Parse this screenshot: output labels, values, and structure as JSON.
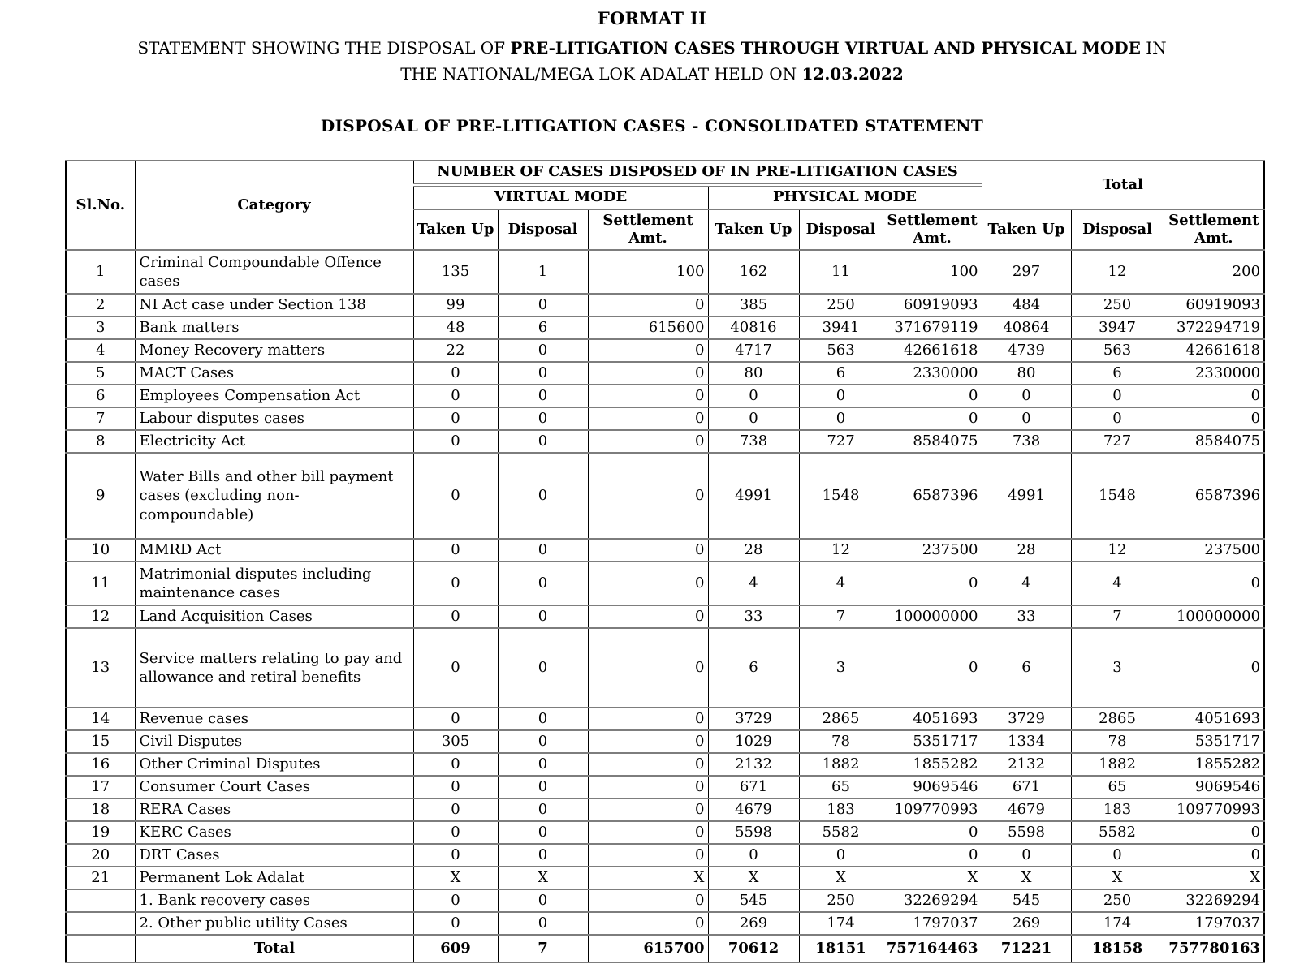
{
  "document": {
    "format_label": "FORMAT II",
    "statement": {
      "prefix": "STATEMENT SHOWING THE DISPOSAL OF",
      "highlight": "PRE-LITIGATION CASES THROUGH VIRTUAL AND PHYSICAL MODE",
      "middle": "IN THE NATIONAL/MEGA LOK ADALAT HELD ON",
      "date": "12.03.2022"
    },
    "subtitle": "DISPOSAL OF PRE-LITIGATION CASES - CONSOLIDATED STATEMENT"
  },
  "table": {
    "headers": {
      "sl_no": "Sl.No.",
      "category": "Category",
      "group": "NUMBER OF CASES DISPOSED OF IN PRE-LITIGATION CASES",
      "virtual_mode": "VIRTUAL MODE",
      "physical_mode": "PHYSICAL MODE",
      "total": "Total",
      "taken_up": "Taken Up",
      "disposal": "Disposal",
      "settlement_amt": "Settlement Amt."
    },
    "rows": [
      {
        "sl": "1",
        "category": "Criminal Compoundable Offence cases",
        "values": [
          "135",
          "1",
          "100",
          "162",
          "11",
          "100",
          "297",
          "12",
          "200"
        ]
      },
      {
        "sl": "2",
        "category": "NI Act case under Section 138",
        "values": [
          "99",
          "0",
          "0",
          "385",
          "250",
          "60919093",
          "484",
          "250",
          "60919093"
        ]
      },
      {
        "sl": "3",
        "category": "Bank matters",
        "values": [
          "48",
          "6",
          "615600",
          "40816",
          "3941",
          "371679119",
          "40864",
          "3947",
          "372294719"
        ]
      },
      {
        "sl": "4",
        "category": "Money Recovery matters",
        "values": [
          "22",
          "0",
          "0",
          "4717",
          "563",
          "42661618",
          "4739",
          "563",
          "42661618"
        ]
      },
      {
        "sl": "5",
        "category": "MACT Cases",
        "values": [
          "0",
          "0",
          "0",
          "80",
          "6",
          "2330000",
          "80",
          "6",
          "2330000"
        ]
      },
      {
        "sl": "6",
        "category": "Employees Compensation Act",
        "values": [
          "0",
          "0",
          "0",
          "0",
          "0",
          "0",
          "0",
          "0",
          "0"
        ]
      },
      {
        "sl": "7",
        "category": "Labour disputes cases",
        "values": [
          "0",
          "0",
          "0",
          "0",
          "0",
          "0",
          "0",
          "0",
          "0"
        ]
      },
      {
        "sl": "8",
        "category": "Electricity Act",
        "values": [
          "0",
          "0",
          "0",
          "738",
          "727",
          "8584075",
          "738",
          "727",
          "8584075"
        ]
      },
      {
        "sl": "9",
        "category": "Water Bills and other bill payment cases (excluding non-compoundable)",
        "values": [
          "0",
          "0",
          "0",
          "4991",
          "1548",
          "6587396",
          "4991",
          "1548",
          "6587396"
        ]
      },
      {
        "sl": "10",
        "category": "MMRD Act",
        "values": [
          "0",
          "0",
          "0",
          "28",
          "12",
          "237500",
          "28",
          "12",
          "237500"
        ]
      },
      {
        "sl": "11",
        "category": "Matrimonial disputes including maintenance cases",
        "values": [
          "0",
          "0",
          "0",
          "4",
          "4",
          "0",
          "4",
          "4",
          "0"
        ]
      },
      {
        "sl": "12",
        "category": "Land Acquisition Cases",
        "values": [
          "0",
          "0",
          "0",
          "33",
          "7",
          "100000000",
          "33",
          "7",
          "100000000"
        ]
      },
      {
        "sl": "13",
        "category": "Service matters relating to pay and allowance and retiral benefits",
        "values": [
          "0",
          "0",
          "0",
          "6",
          "3",
          "0",
          "6",
          "3",
          "0"
        ]
      },
      {
        "sl": "14",
        "category": "Revenue cases",
        "values": [
          "0",
          "0",
          "0",
          "3729",
          "2865",
          "4051693",
          "3729",
          "2865",
          "4051693"
        ]
      },
      {
        "sl": "15",
        "category": "Civil Disputes",
        "values": [
          "305",
          "0",
          "0",
          "1029",
          "78",
          "5351717",
          "1334",
          "78",
          "5351717"
        ]
      },
      {
        "sl": "16",
        "category": "Other Criminal Disputes",
        "values": [
          "0",
          "0",
          "0",
          "2132",
          "1882",
          "1855282",
          "2132",
          "1882",
          "1855282"
        ]
      },
      {
        "sl": "17",
        "category": "Consumer Court Cases",
        "values": [
          "0",
          "0",
          "0",
          "671",
          "65",
          "9069546",
          "671",
          "65",
          "9069546"
        ]
      },
      {
        "sl": "18",
        "category": "RERA Cases",
        "values": [
          "0",
          "0",
          "0",
          "4679",
          "183",
          "109770993",
          "4679",
          "183",
          "109770993"
        ]
      },
      {
        "sl": "19",
        "category": "KERC Cases",
        "values": [
          "0",
          "0",
          "0",
          "5598",
          "5582",
          "0",
          "5598",
          "5582",
          "0"
        ]
      },
      {
        "sl": "20",
        "category": "DRT Cases",
        "values": [
          "0",
          "0",
          "0",
          "0",
          "0",
          "0",
          "0",
          "0",
          "0"
        ]
      },
      {
        "sl": "21",
        "category": "Permanent Lok Adalat",
        "values": [
          "X",
          "X",
          "X",
          "X",
          "X",
          "X",
          "X",
          "X",
          "X"
        ]
      },
      {
        "sl": "",
        "category": "1. Bank recovery cases",
        "values": [
          "0",
          "0",
          "0",
          "545",
          "250",
          "32269294",
          "545",
          "250",
          "32269294"
        ]
      },
      {
        "sl": "",
        "category": "2. Other public utility Cases",
        "values": [
          "0",
          "0",
          "0",
          "269",
          "174",
          "1797037",
          "269",
          "174",
          "1797037"
        ]
      }
    ],
    "total_row": {
      "label": "Total",
      "values": [
        "609",
        "7",
        "615700",
        "70612",
        "18151",
        "757164463",
        "71221",
        "18158",
        "757780163"
      ]
    }
  }
}
